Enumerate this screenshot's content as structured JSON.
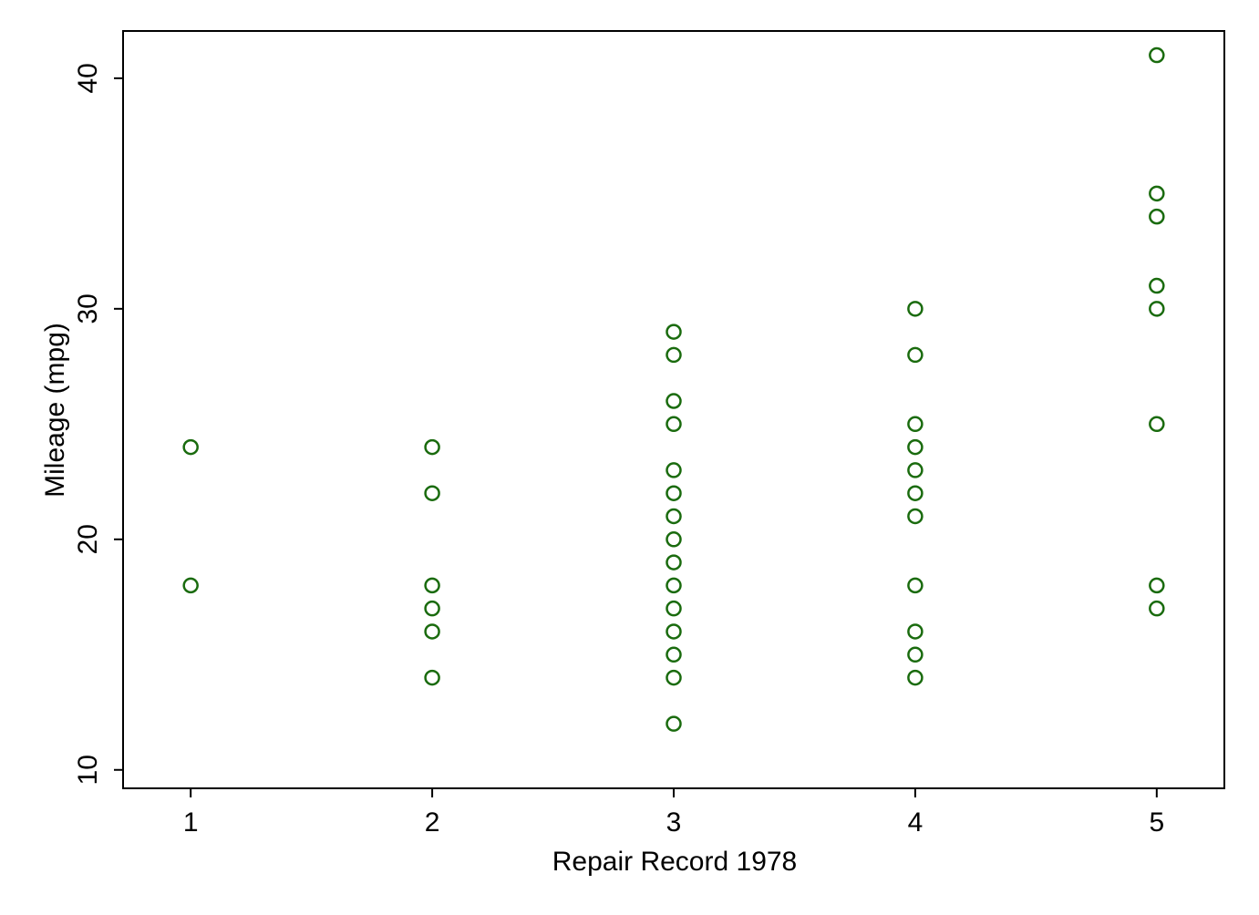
{
  "chart_data": {
    "type": "scatter",
    "title": "",
    "xlabel": "Repair Record 1978",
    "ylabel": "Mileage (mpg)",
    "xlim": [
      0.72,
      5.28
    ],
    "ylim": [
      9.2,
      42.05
    ],
    "x_ticks": [
      1,
      2,
      3,
      4,
      5
    ],
    "y_ticks": [
      10,
      20,
      30,
      40
    ],
    "grid": false,
    "legend": "none",
    "marker": "hollow-circle",
    "colors": {
      "marker": "#1a6b0e",
      "axis": "#000000",
      "background": "#ffffff"
    },
    "points": [
      {
        "x": 1,
        "y": 24
      },
      {
        "x": 1,
        "y": 18
      },
      {
        "x": 2,
        "y": 24
      },
      {
        "x": 2,
        "y": 22
      },
      {
        "x": 2,
        "y": 18
      },
      {
        "x": 2,
        "y": 17
      },
      {
        "x": 2,
        "y": 16
      },
      {
        "x": 2,
        "y": 14
      },
      {
        "x": 3,
        "y": 29
      },
      {
        "x": 3,
        "y": 28
      },
      {
        "x": 3,
        "y": 26
      },
      {
        "x": 3,
        "y": 25
      },
      {
        "x": 3,
        "y": 23
      },
      {
        "x": 3,
        "y": 22
      },
      {
        "x": 3,
        "y": 21
      },
      {
        "x": 3,
        "y": 20
      },
      {
        "x": 3,
        "y": 19
      },
      {
        "x": 3,
        "y": 18
      },
      {
        "x": 3,
        "y": 17
      },
      {
        "x": 3,
        "y": 16
      },
      {
        "x": 3,
        "y": 15
      },
      {
        "x": 3,
        "y": 14
      },
      {
        "x": 3,
        "y": 12
      },
      {
        "x": 4,
        "y": 30
      },
      {
        "x": 4,
        "y": 28
      },
      {
        "x": 4,
        "y": 25
      },
      {
        "x": 4,
        "y": 24
      },
      {
        "x": 4,
        "y": 23
      },
      {
        "x": 4,
        "y": 22
      },
      {
        "x": 4,
        "y": 21
      },
      {
        "x": 4,
        "y": 18
      },
      {
        "x": 4,
        "y": 16
      },
      {
        "x": 4,
        "y": 15
      },
      {
        "x": 4,
        "y": 14
      },
      {
        "x": 5,
        "y": 41
      },
      {
        "x": 5,
        "y": 35
      },
      {
        "x": 5,
        "y": 34
      },
      {
        "x": 5,
        "y": 31
      },
      {
        "x": 5,
        "y": 30
      },
      {
        "x": 5,
        "y": 25
      },
      {
        "x": 5,
        "y": 18
      },
      {
        "x": 5,
        "y": 17
      }
    ]
  }
}
